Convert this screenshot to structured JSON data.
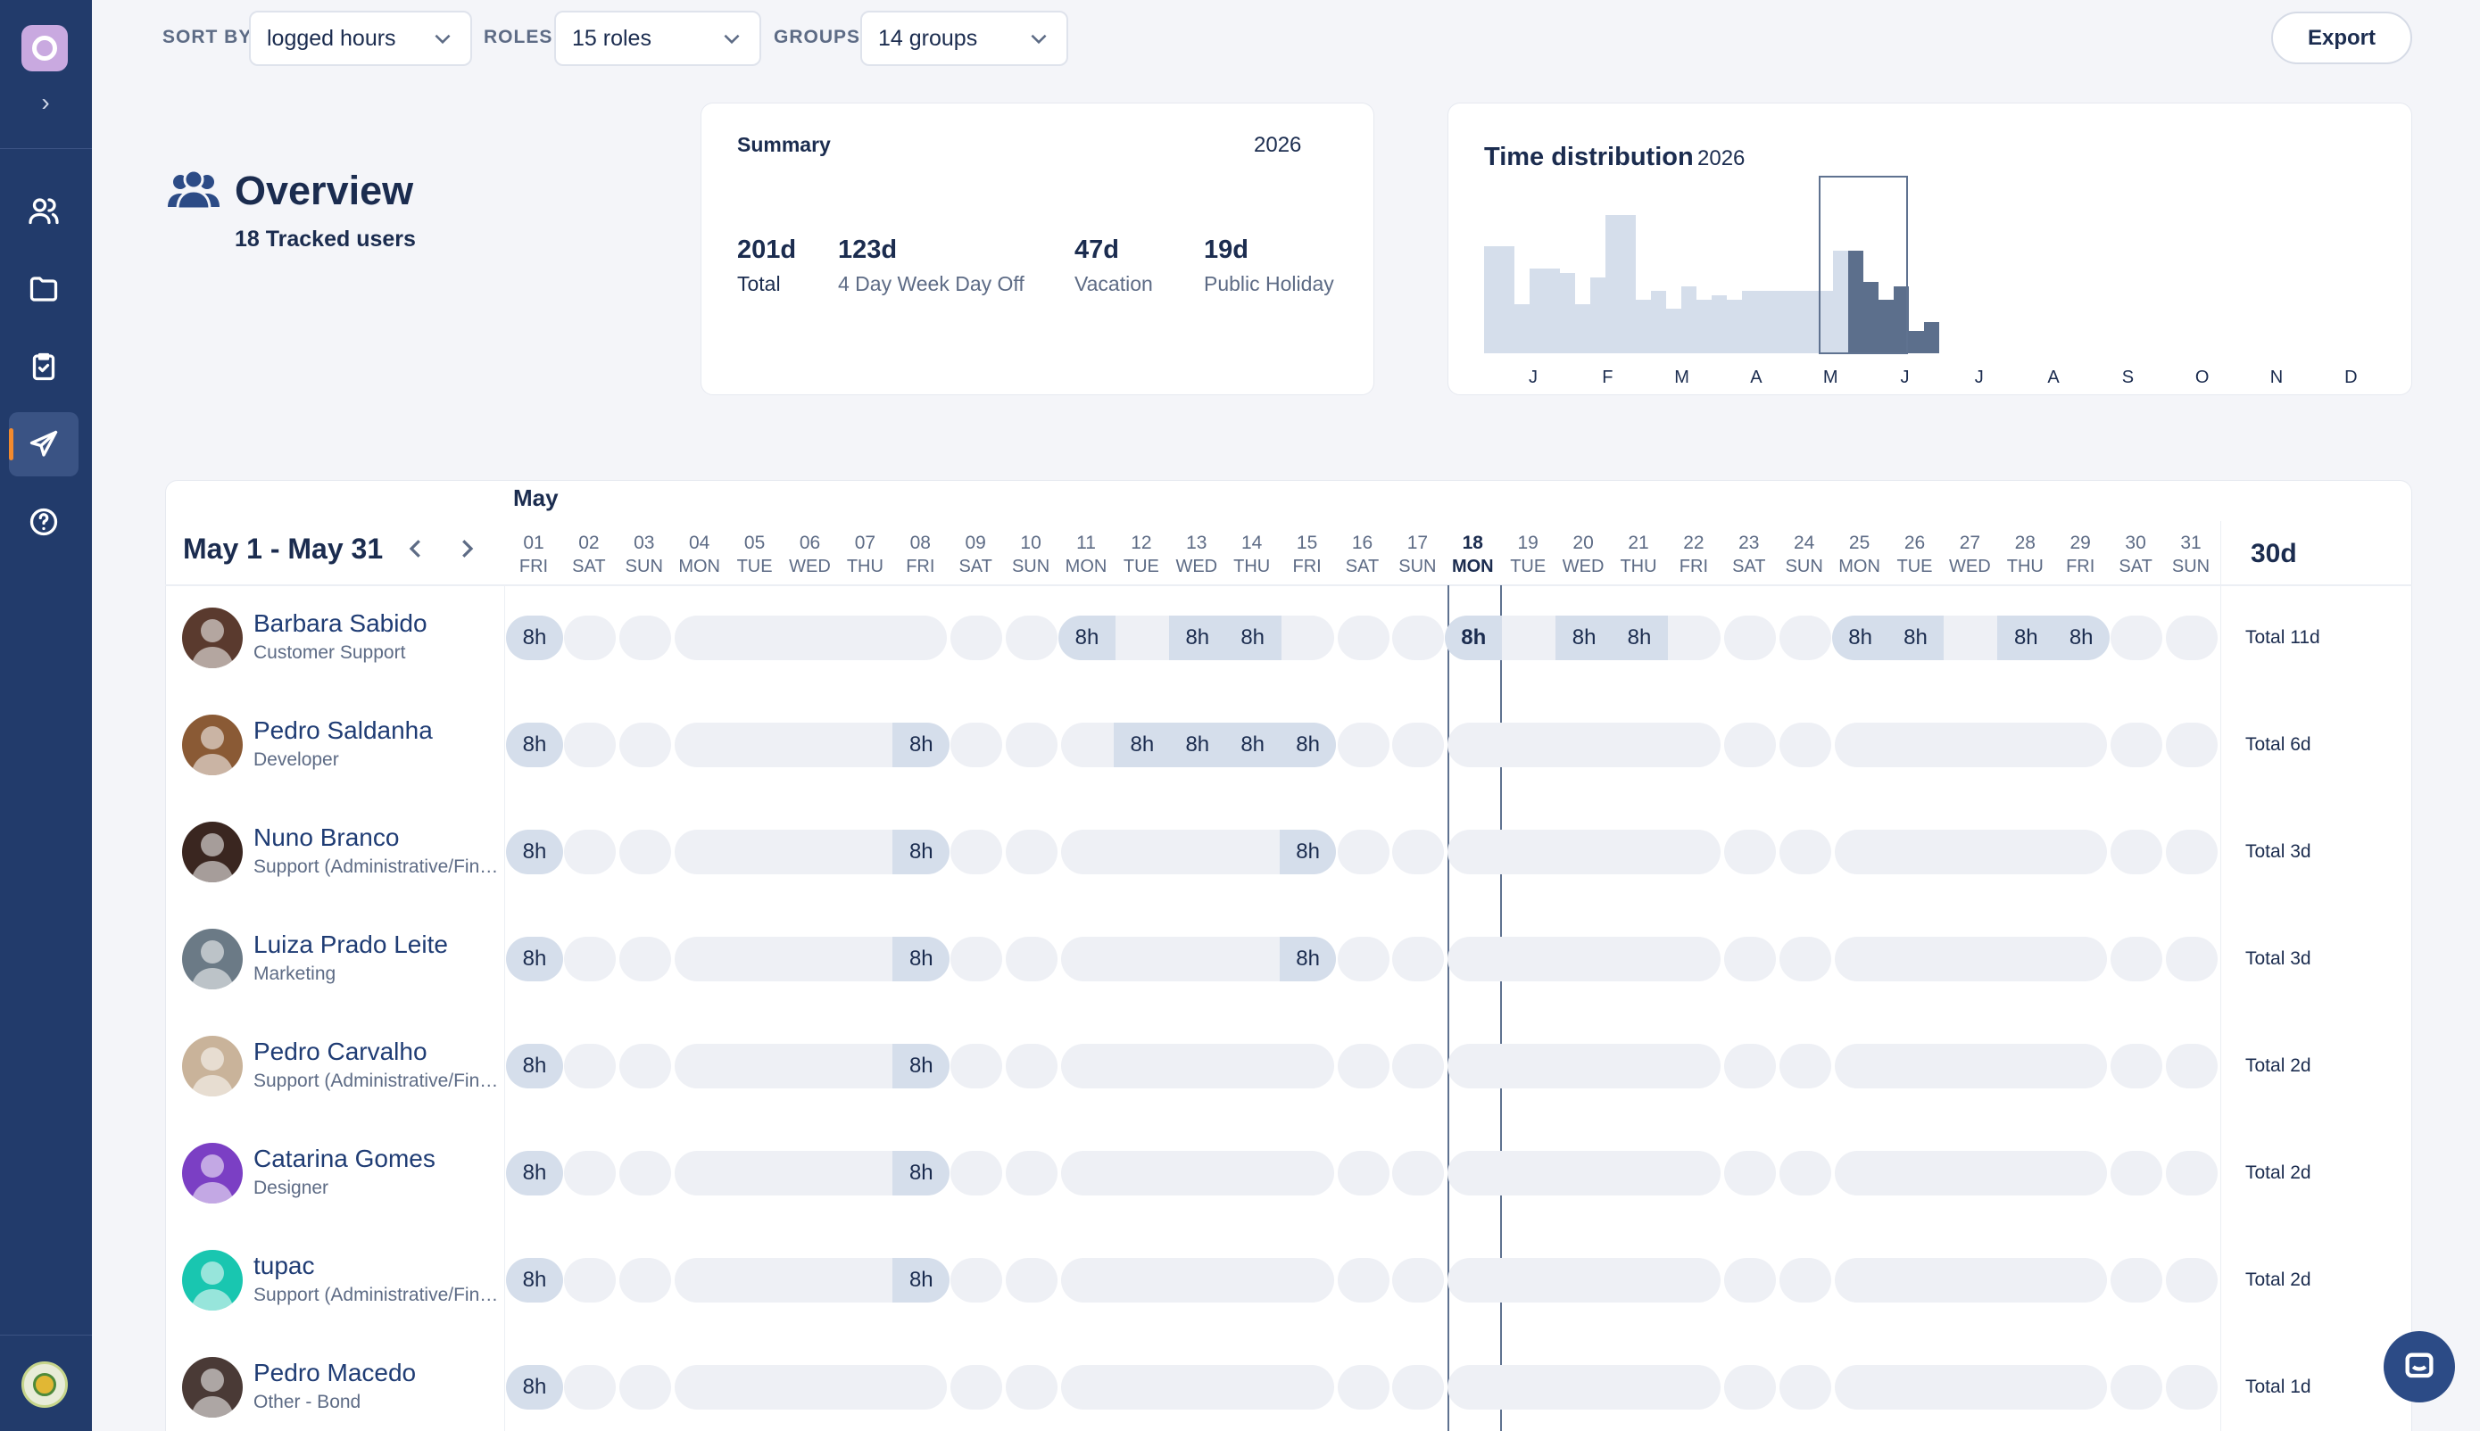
{
  "filters": {
    "sort_label": "SORT BY",
    "sort_value": "logged hours",
    "roles_label": "ROLES",
    "roles_value": "15 roles",
    "groups_label": "GROUPS",
    "groups_value": "14 groups",
    "export_label": "Export"
  },
  "overview": {
    "title": "Overview",
    "subtitle": "18 Tracked users"
  },
  "summary": {
    "title": "Summary",
    "year": "2026",
    "stats": [
      {
        "value": "201d",
        "label": "Total"
      },
      {
        "value": "123d",
        "label": "4 Day Week Day Off"
      },
      {
        "value": "47d",
        "label": "Vacation"
      },
      {
        "value": "19d",
        "label": "Public Holiday"
      }
    ]
  },
  "time_distribution": {
    "title": "Time distribution",
    "year": "2026",
    "months": [
      "J",
      "F",
      "M",
      "A",
      "M",
      "J",
      "J",
      "A",
      "S",
      "O",
      "N",
      "D"
    ],
    "highlighted_month": "M",
    "colors": {
      "bar": "#d5deeb",
      "highlight": "#5c6f8c",
      "frame": "#5f7290"
    }
  },
  "calendar": {
    "month": "May",
    "range": "May 1 - May 31",
    "total_days": "30d",
    "today": "18",
    "days": [
      {
        "num": "01",
        "name": "FRI"
      },
      {
        "num": "02",
        "name": "SAT"
      },
      {
        "num": "03",
        "name": "SUN"
      },
      {
        "num": "04",
        "name": "MON"
      },
      {
        "num": "05",
        "name": "TUE"
      },
      {
        "num": "06",
        "name": "WED"
      },
      {
        "num": "07",
        "name": "THU"
      },
      {
        "num": "08",
        "name": "FRI"
      },
      {
        "num": "09",
        "name": "SAT"
      },
      {
        "num": "10",
        "name": "SUN"
      },
      {
        "num": "11",
        "name": "MON"
      },
      {
        "num": "12",
        "name": "TUE"
      },
      {
        "num": "13",
        "name": "WED"
      },
      {
        "num": "14",
        "name": "THU"
      },
      {
        "num": "15",
        "name": "FRI"
      },
      {
        "num": "16",
        "name": "SAT"
      },
      {
        "num": "17",
        "name": "SUN"
      },
      {
        "num": "18",
        "name": "MON"
      },
      {
        "num": "19",
        "name": "TUE"
      },
      {
        "num": "20",
        "name": "WED"
      },
      {
        "num": "21",
        "name": "THU"
      },
      {
        "num": "22",
        "name": "FRI"
      },
      {
        "num": "23",
        "name": "SAT"
      },
      {
        "num": "24",
        "name": "SUN"
      },
      {
        "num": "25",
        "name": "MON"
      },
      {
        "num": "26",
        "name": "TUE"
      },
      {
        "num": "27",
        "name": "WED"
      },
      {
        "num": "28",
        "name": "THU"
      },
      {
        "num": "29",
        "name": "FRI"
      },
      {
        "num": "30",
        "name": "SAT"
      },
      {
        "num": "31",
        "name": "SUN"
      }
    ],
    "hours_label": "8h",
    "users": [
      {
        "name": "Barbara Sabido",
        "role": "Customer Support",
        "total": "Total 11d",
        "days": [
          1,
          11,
          13,
          14,
          18,
          20,
          21,
          25,
          26,
          28,
          29
        ],
        "avatar": "#5a3a2e"
      },
      {
        "name": "Pedro Saldanha",
        "role": "Developer",
        "total": "Total 6d",
        "days": [
          1,
          8,
          12,
          13,
          14,
          15
        ],
        "avatar": "#8a5a35"
      },
      {
        "name": "Nuno Branco",
        "role": "Support (Administrative/Financial)",
        "total": "Total 3d",
        "days": [
          1,
          8,
          15
        ],
        "avatar": "#3a2620"
      },
      {
        "name": "Luiza Prado Leite",
        "role": "Marketing",
        "total": "Total 3d",
        "days": [
          1,
          8,
          15
        ],
        "avatar": "#6b7a86"
      },
      {
        "name": "Pedro Carvalho",
        "role": "Support (Administrative/Financial)",
        "total": "Total 2d",
        "days": [
          1,
          8
        ],
        "avatar": "#c9b39a"
      },
      {
        "name": "Catarina Gomes",
        "role": "Designer",
        "total": "Total 2d",
        "days": [
          1,
          8
        ],
        "avatar": "#7b3fc4"
      },
      {
        "name": "tupac",
        "role": "Support (Administrative/Financial)",
        "total": "Total 2d",
        "days": [
          1,
          8
        ],
        "avatar": "#19c6b0"
      },
      {
        "name": "Pedro Macedo",
        "role": "Other - Bond",
        "total": "Total 1d",
        "days": [
          1
        ],
        "avatar": "#4a3a36"
      }
    ]
  },
  "sidebar": {
    "items": [
      {
        "icon": "users-icon"
      },
      {
        "icon": "folder-icon"
      },
      {
        "icon": "clipboard-check-icon"
      },
      {
        "icon": "plane-icon",
        "active": true
      },
      {
        "icon": "help-icon"
      }
    ]
  },
  "colors": {
    "sidebar": "#223b6b",
    "accent": "#f28a2e",
    "cell": "#eef0f5",
    "cell_on": "#d5deeb"
  }
}
